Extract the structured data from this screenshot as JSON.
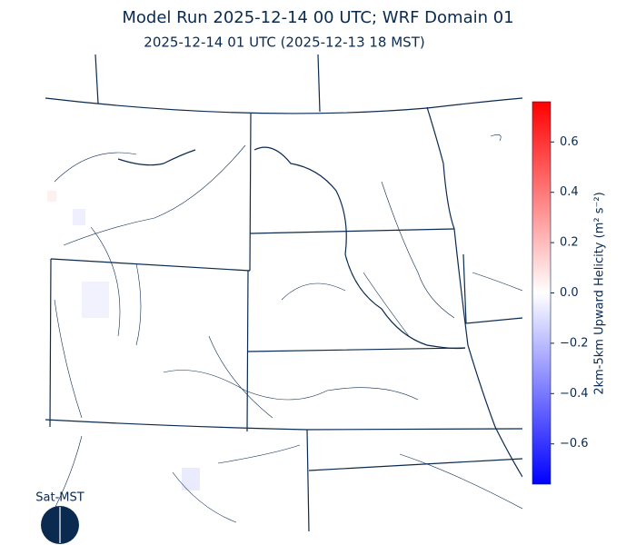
{
  "title": "Model Run 2025-12-14 00 UTC; WRF Domain 01",
  "subtitle": "2025-12-14 01 UTC  (2025-12-13 18 MST)",
  "colorbar": {
    "label": "2km-5km Upward Helicity (m² s⁻²)",
    "lim": [
      -0.76,
      0.76
    ],
    "ticks": [
      {
        "value": 0.6,
        "label": "0.6"
      },
      {
        "value": 0.4,
        "label": "0.4"
      },
      {
        "value": 0.2,
        "label": "0.2"
      },
      {
        "value": 0,
        "label": "0.0"
      },
      {
        "value": -0.2,
        "label": "−0.2"
      },
      {
        "value": -0.4,
        "label": "−0.4"
      },
      {
        "value": -0.6,
        "label": "−0.6"
      }
    ]
  },
  "badge": "Sat-MST"
}
